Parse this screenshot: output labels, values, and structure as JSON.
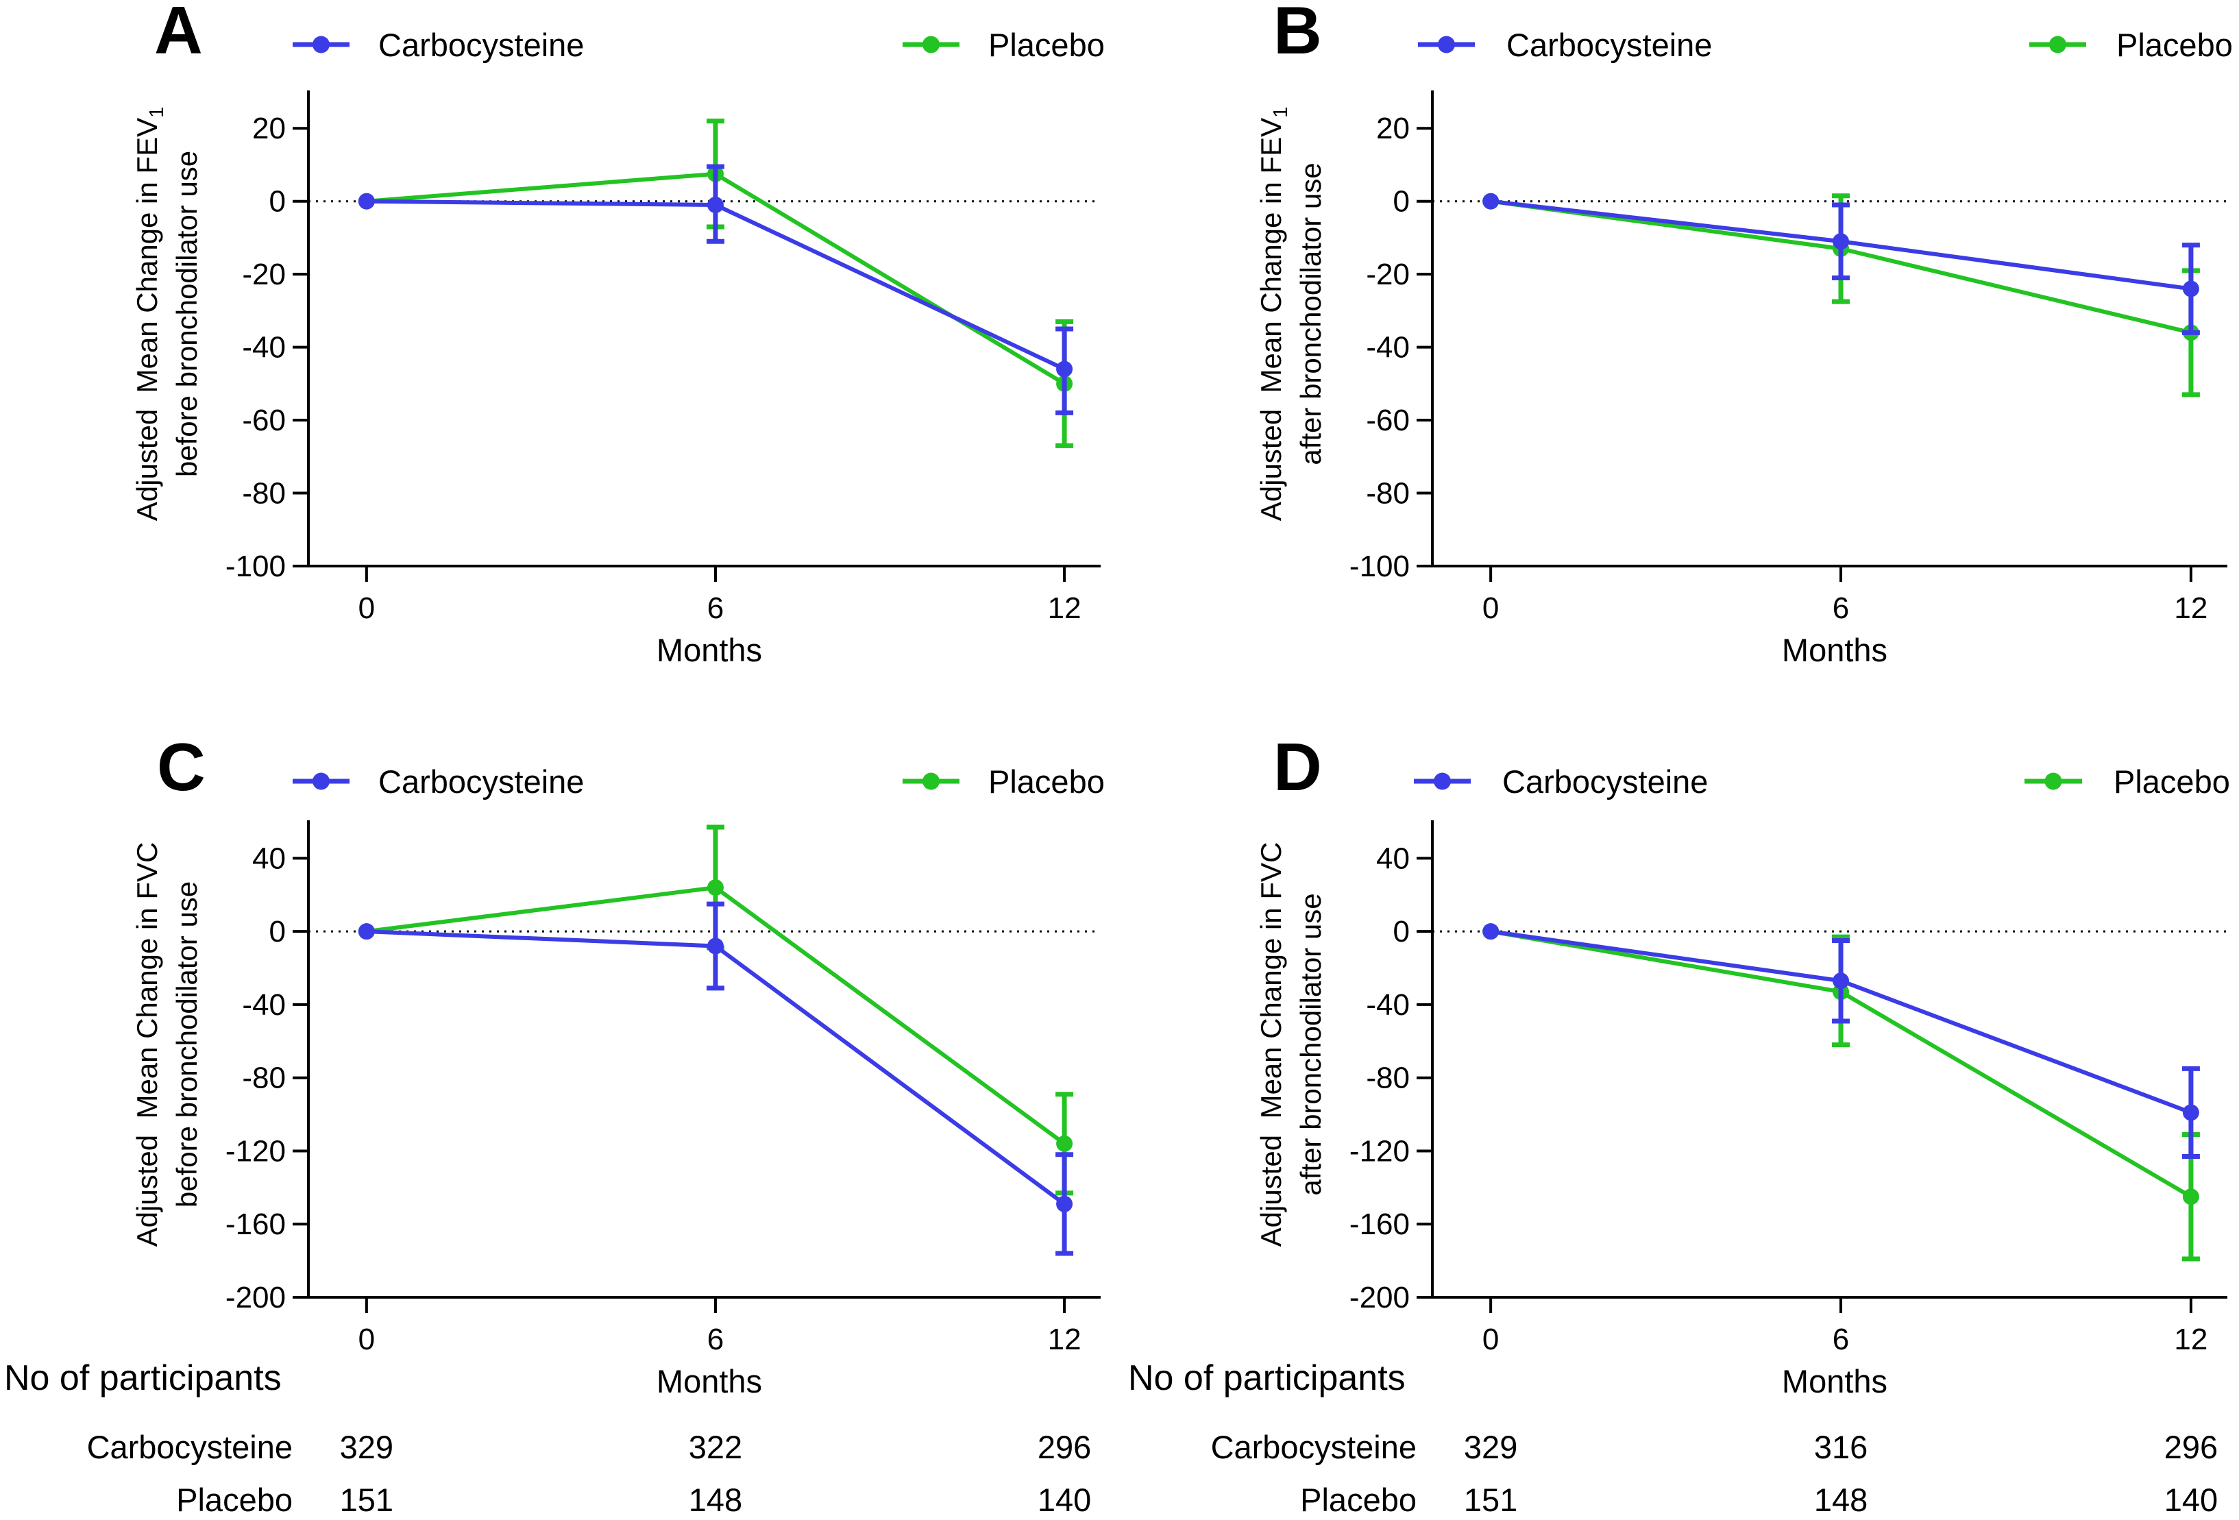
{
  "panel_label_color": "#e8231b",
  "chart_data": [
    {
      "panel_label": "A",
      "type": "line",
      "legend_position": "top",
      "grid": false,
      "x": [
        0,
        6,
        12
      ],
      "xticks": [
        0,
        6,
        12
      ],
      "yticks": [
        20,
        0,
        -20,
        -40,
        -60,
        -80,
        -100
      ],
      "xlim": [
        -1,
        12.6
      ],
      "ylim": [
        -100,
        30
      ],
      "reference_line_y": 0,
      "xlabel": "Months",
      "ylabel": {
        "line1": "Adjusted  Mean Change in FEV",
        "sub": "1",
        "line2": "before bronchodilator use"
      },
      "series": [
        {
          "name": "Carbocysteine",
          "color": "#3c3ce6",
          "values": [
            0,
            -1,
            -46
          ],
          "error_upper": [
            null,
            9.5,
            -35
          ],
          "error_lower": [
            null,
            -11,
            -58
          ]
        },
        {
          "name": "Placebo",
          "color": "#22c322",
          "values": [
            0,
            7.5,
            -50
          ],
          "error_upper": [
            null,
            22,
            -33
          ],
          "error_lower": [
            null,
            -7,
            -67
          ]
        }
      ]
    },
    {
      "panel_label": "B",
      "type": "line",
      "legend_position": "top",
      "grid": false,
      "x": [
        0,
        6,
        12
      ],
      "xticks": [
        0,
        6,
        12
      ],
      "yticks": [
        20,
        0,
        -20,
        -40,
        -60,
        -80,
        -100
      ],
      "xlim": [
        -1,
        12.6
      ],
      "ylim": [
        -100,
        30
      ],
      "reference_line_y": 0,
      "xlabel": "Months",
      "ylabel": {
        "line1": "Adjusted  Mean Change in FEV",
        "sub": "1",
        "line2": "after bronchodilator use"
      },
      "series": [
        {
          "name": "Carbocysteine",
          "color": "#3c3ce6",
          "values": [
            0,
            -11,
            -24
          ],
          "error_upper": [
            null,
            -1,
            -12
          ],
          "error_lower": [
            null,
            -21,
            -36
          ]
        },
        {
          "name": "Placebo",
          "color": "#22c322",
          "values": [
            0,
            -13,
            -36
          ],
          "error_upper": [
            null,
            1.5,
            -19
          ],
          "error_lower": [
            null,
            -27.5,
            -53
          ]
        }
      ]
    },
    {
      "panel_label": "C",
      "type": "line",
      "legend_position": "top",
      "grid": false,
      "x": [
        0,
        6,
        12
      ],
      "xticks": [
        0,
        6,
        12
      ],
      "yticks": [
        40,
        0,
        -40,
        -80,
        -120,
        -160,
        -200
      ],
      "xlim": [
        -1,
        12.6
      ],
      "ylim": [
        -200,
        60
      ],
      "reference_line_y": 0,
      "xlabel": "Months",
      "ylabel": {
        "line1": "Adjusted  Mean Change in FVC",
        "line2": "before bronchodilator use"
      },
      "series": [
        {
          "name": "Carbocysteine",
          "color": "#3c3ce6",
          "values": [
            0,
            -8,
            -149
          ],
          "error_upper": [
            null,
            15,
            -122
          ],
          "error_lower": [
            null,
            -31,
            -176
          ]
        },
        {
          "name": "Placebo",
          "color": "#22c322",
          "values": [
            0,
            24,
            -116
          ],
          "error_upper": [
            null,
            57,
            -89
          ],
          "error_lower": [
            null,
            -9,
            -143
          ]
        }
      ],
      "participants": {
        "heading": "No of participants",
        "rows": [
          {
            "label": "Carbocysteine",
            "counts": [
              329,
              322,
              296
            ]
          },
          {
            "label": "Placebo",
            "counts": [
              151,
              148,
              140
            ]
          }
        ]
      }
    },
    {
      "panel_label": "D",
      "type": "line",
      "legend_position": "top",
      "grid": false,
      "x": [
        0,
        6,
        12
      ],
      "xticks": [
        0,
        6,
        12
      ],
      "yticks": [
        40,
        0,
        -40,
        -80,
        -120,
        -160,
        -200
      ],
      "xlim": [
        -1,
        12.6
      ],
      "ylim": [
        -200,
        60
      ],
      "reference_line_y": 0,
      "xlabel": "Months",
      "ylabel": {
        "line1": "Adjusted  Mean Change in FVC",
        "line2": "after bronchodilator use"
      },
      "series": [
        {
          "name": "Carbocysteine",
          "color": "#3c3ce6",
          "values": [
            0,
            -27,
            -99
          ],
          "error_upper": [
            null,
            -5,
            -75
          ],
          "error_lower": [
            null,
            -49,
            -123
          ]
        },
        {
          "name": "Placebo",
          "color": "#22c322",
          "values": [
            0,
            -33,
            -145
          ],
          "error_upper": [
            null,
            -3,
            -111
          ],
          "error_lower": [
            null,
            -62,
            -179
          ]
        }
      ],
      "participants": {
        "heading": "No of participants",
        "rows": [
          {
            "label": "Carbocysteine",
            "counts": [
              329,
              316,
              296
            ]
          },
          {
            "label": "Placebo",
            "counts": [
              151,
              148,
              140
            ]
          }
        ]
      }
    }
  ]
}
